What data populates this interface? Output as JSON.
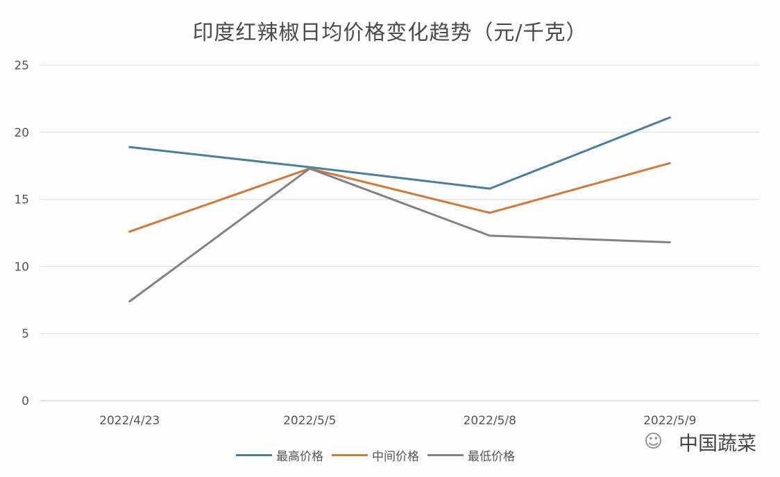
{
  "chart_data": {
    "type": "line",
    "title": "印度红辣椒日均价格变化趋势（元/千克）",
    "categories": [
      "2022/4/23",
      "2022/5/5",
      "2022/5/8",
      "2022/5/9"
    ],
    "ylim": [
      0,
      25
    ],
    "yticks": [
      0,
      5,
      10,
      15,
      20,
      25
    ],
    "grid": true,
    "legend_position": "bottom",
    "series": [
      {
        "name": "最高价格",
        "color": "#4a7f99",
        "values": [
          18.9,
          17.4,
          15.8,
          21.1
        ]
      },
      {
        "name": "中间价格",
        "color": "#d0793a",
        "values": [
          12.6,
          17.3,
          14.0,
          17.7
        ]
      },
      {
        "name": "最低价格",
        "color": "#858088",
        "values": [
          7.4,
          17.3,
          12.3,
          11.8
        ]
      }
    ],
    "watermark": "中国蔬菜"
  }
}
